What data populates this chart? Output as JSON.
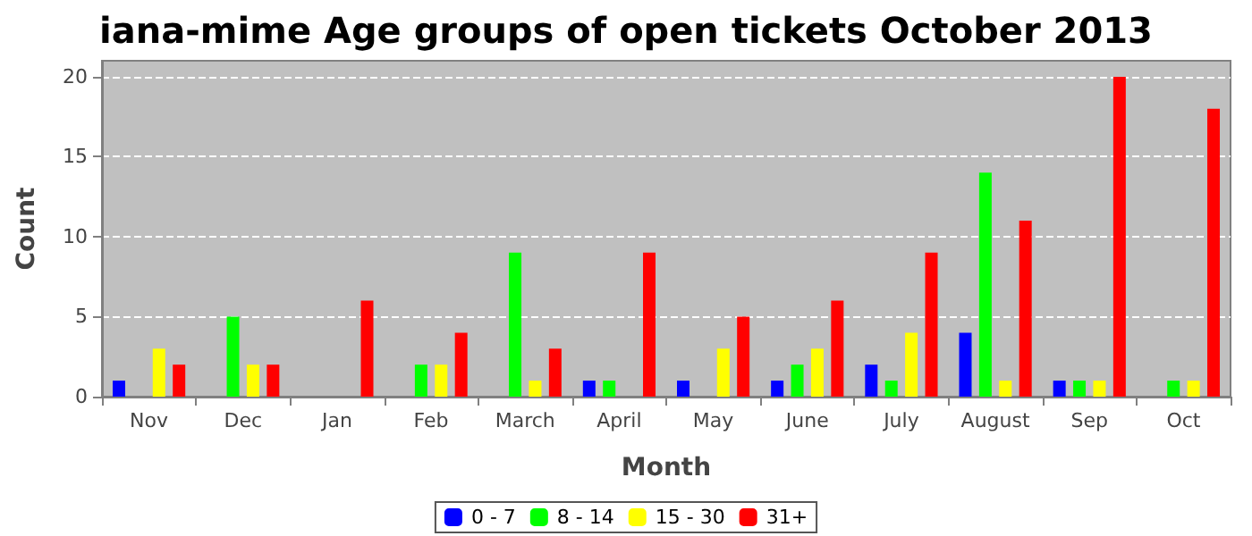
{
  "chart_data": {
    "type": "bar",
    "title": "iana-mime Age groups of open tickets October 2013",
    "xlabel": "Month",
    "ylabel": "Count",
    "categories": [
      "Nov",
      "Dec",
      "Jan",
      "Feb",
      "March",
      "April",
      "May",
      "June",
      "July",
      "August",
      "Sep",
      "Oct"
    ],
    "series": [
      {
        "name": "0 - 7",
        "color": "#0000ff",
        "values": [
          1,
          0,
          0,
          0,
          0,
          1,
          1,
          1,
          2,
          4,
          1,
          0
        ]
      },
      {
        "name": "8 - 14",
        "color": "#00ff00",
        "values": [
          0,
          5,
          0,
          2,
          9,
          1,
          0,
          2,
          1,
          14,
          1,
          1
        ]
      },
      {
        "name": "15 - 30",
        "color": "#ffff00",
        "values": [
          3,
          2,
          0,
          2,
          1,
          0,
          3,
          3,
          4,
          1,
          1,
          1
        ]
      },
      {
        "name": "31+",
        "color": "#ff0000",
        "values": [
          2,
          2,
          6,
          4,
          3,
          9,
          5,
          6,
          9,
          11,
          20,
          18
        ]
      }
    ],
    "ylim": [
      0,
      21
    ],
    "yticks": [
      0,
      5,
      10,
      15,
      20
    ],
    "grid": "y",
    "legend": "bottom"
  }
}
